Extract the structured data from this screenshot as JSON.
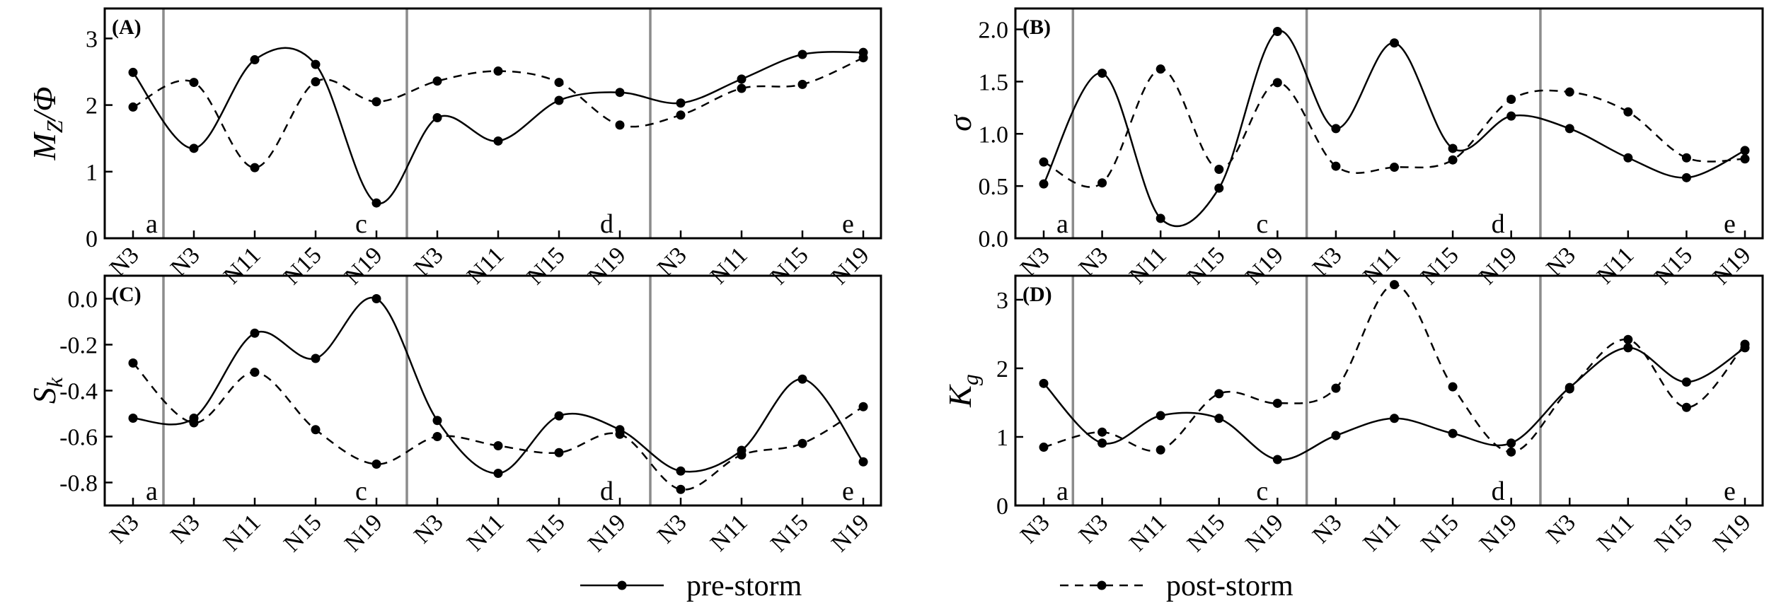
{
  "chart_data": [
    {
      "type": "line",
      "panel": "(A)",
      "ylabel": "Mz/Φ",
      "ylabel_main": "M",
      "ylabel_sub": "Z",
      "ylabel_tail": "/Φ",
      "ylim": [
        0,
        3.45
      ],
      "yticks": [
        0,
        1,
        2,
        3
      ],
      "ytick_labels": [
        "0",
        "1",
        "2",
        "3"
      ],
      "categories": [
        "N3",
        "N3",
        "N11",
        "N15",
        "N19",
        "N3",
        "N11",
        "N15",
        "N19",
        "N3",
        "N11",
        "N15",
        "N19"
      ],
      "section_labels": [
        "a",
        "c",
        "d",
        "e"
      ],
      "series": [
        {
          "name": "pre-storm",
          "values": [
            2.49,
            1.35,
            2.68,
            2.61,
            0.53,
            1.81,
            1.46,
            2.07,
            2.19,
            2.03,
            2.39,
            2.76,
            2.79
          ]
        },
        {
          "name": "post-storm",
          "values": [
            1.97,
            2.34,
            1.06,
            2.35,
            2.05,
            2.36,
            2.51,
            2.34,
            1.7,
            1.85,
            2.25,
            2.31,
            2.71
          ]
        }
      ]
    },
    {
      "type": "line",
      "panel": "(B)",
      "ylabel": "σ",
      "ylim": [
        0,
        2.2
      ],
      "yticks": [
        0,
        0.5,
        1.0,
        1.5,
        2.0
      ],
      "ytick_labels": [
        "0.0",
        "0.5",
        "1.0",
        "1.5",
        "2.0"
      ],
      "categories": [
        "N3",
        "N3",
        "N11",
        "N15",
        "N19",
        "N3",
        "N11",
        "N15",
        "N19",
        "N3",
        "N11",
        "N15",
        "N19"
      ],
      "section_labels": [
        "a",
        "c",
        "d",
        "e"
      ],
      "series": [
        {
          "name": "pre-storm",
          "values": [
            0.52,
            1.58,
            0.19,
            0.48,
            1.98,
            1.05,
            1.87,
            0.86,
            1.17,
            1.05,
            0.77,
            0.58,
            0.84
          ]
        },
        {
          "name": "post-storm",
          "values": [
            0.73,
            0.53,
            1.62,
            0.66,
            1.49,
            0.69,
            0.68,
            0.75,
            1.33,
            1.4,
            1.21,
            0.77,
            0.76
          ]
        }
      ]
    },
    {
      "type": "line",
      "panel": "(C)",
      "ylabel": "Sk",
      "ylabel_main": "S",
      "ylabel_sub": "k",
      "ylim": [
        -0.9,
        0.1
      ],
      "yticks": [
        -0.8,
        -0.6,
        -0.4,
        -0.2,
        0.0
      ],
      "ytick_labels": [
        "-0.8",
        "-0.6",
        "-0.4",
        "-0.2",
        "0.0"
      ],
      "categories": [
        "N3",
        "N3",
        "N11",
        "N15",
        "N19",
        "N3",
        "N11",
        "N15",
        "N19",
        "N3",
        "N11",
        "N15",
        "N19"
      ],
      "section_labels": [
        "a",
        "c",
        "d",
        "e"
      ],
      "series": [
        {
          "name": "pre-storm",
          "values": [
            -0.52,
            -0.52,
            -0.15,
            -0.26,
            0.0,
            -0.53,
            -0.76,
            -0.51,
            -0.57,
            -0.75,
            -0.66,
            -0.35,
            -0.71
          ]
        },
        {
          "name": "post-storm",
          "values": [
            -0.28,
            -0.54,
            -0.32,
            -0.57,
            -0.72,
            -0.6,
            -0.64,
            -0.67,
            -0.59,
            -0.83,
            -0.68,
            -0.63,
            -0.47
          ]
        }
      ]
    },
    {
      "type": "line",
      "panel": "(D)",
      "ylabel": "Kg",
      "ylabel_main": "K",
      "ylabel_sub": "g",
      "ylim": [
        0,
        3.35
      ],
      "yticks": [
        0,
        1,
        2,
        3
      ],
      "ytick_labels": [
        "0",
        "1",
        "2",
        "3"
      ],
      "categories": [
        "N3",
        "N3",
        "N11",
        "N15",
        "N19",
        "N3",
        "N11",
        "N15",
        "N19",
        "N3",
        "N11",
        "N15",
        "N19"
      ],
      "section_labels": [
        "a",
        "c",
        "d",
        "e"
      ],
      "series": [
        {
          "name": "pre-storm",
          "values": [
            1.78,
            0.91,
            1.31,
            1.27,
            0.67,
            1.02,
            1.27,
            1.05,
            0.91,
            1.72,
            2.3,
            1.8,
            2.3
          ]
        },
        {
          "name": "post-storm",
          "values": [
            0.85,
            1.07,
            0.81,
            1.63,
            1.49,
            1.71,
            3.22,
            1.73,
            0.78,
            1.7,
            2.42,
            1.43,
            2.35
          ]
        }
      ]
    }
  ],
  "legend": {
    "items": [
      {
        "label": "pre-storm",
        "style": "solid"
      },
      {
        "label": "post-storm",
        "style": "dashed"
      }
    ]
  },
  "colors": {
    "line": "#000000",
    "divider": "#8c8c8c"
  }
}
